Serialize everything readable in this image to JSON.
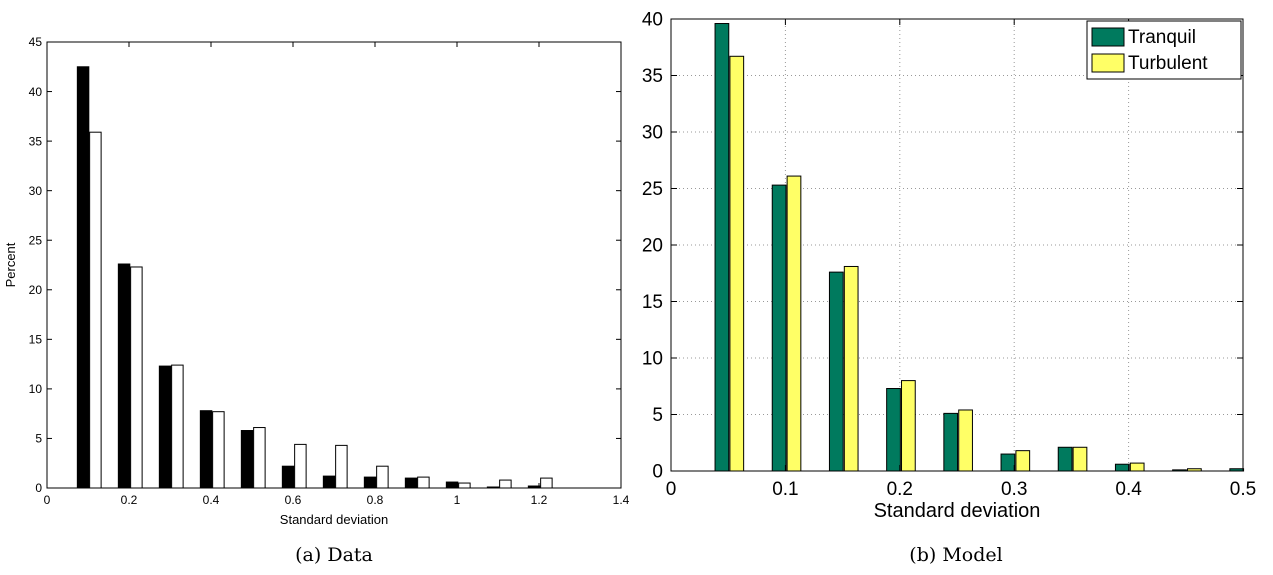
{
  "captions": {
    "a": "(a) Data",
    "b": "(b) Model"
  },
  "chart_data": [
    {
      "type": "bar",
      "xlabel": "Standard deviation",
      "ylabel": "Percent",
      "xlim": [
        0,
        1.4
      ],
      "ylim": [
        0,
        45
      ],
      "xticks": [
        0,
        0.2,
        0.4,
        0.6,
        0.8,
        1,
        1.2,
        1.4
      ],
      "xtick_labels": [
        "0",
        "0.2",
        "0.4",
        "0.6",
        "0.8",
        "1",
        "1.2",
        "1.4"
      ],
      "yticks": [
        0,
        5,
        10,
        15,
        20,
        25,
        30,
        35,
        40,
        45
      ],
      "grid": false,
      "legend": null,
      "categories": [
        0.1,
        0.2,
        0.3,
        0.4,
        0.5,
        0.6,
        0.7,
        0.8,
        0.9,
        1.0,
        1.1,
        1.2
      ],
      "series": [
        {
          "color": "#000000",
          "values": [
            42.5,
            22.6,
            12.3,
            7.8,
            5.8,
            2.2,
            1.2,
            1.1,
            1.0,
            0.6,
            0.1,
            0.2
          ]
        },
        {
          "color": "#ffffff",
          "values": [
            35.9,
            22.3,
            12.4,
            7.7,
            6.1,
            4.4,
            4.3,
            2.2,
            1.1,
            0.5,
            0.8,
            1.0
          ]
        }
      ]
    },
    {
      "type": "bar",
      "xlabel": "Standard deviation",
      "ylabel": "",
      "xlim": [
        0,
        0.5
      ],
      "ylim": [
        0,
        40
      ],
      "xticks": [
        0,
        0.1,
        0.2,
        0.3,
        0.4,
        0.5
      ],
      "xtick_labels": [
        "0",
        "0.1",
        "0.2",
        "0.3",
        "0.4",
        "0.5"
      ],
      "yticks": [
        0,
        5,
        10,
        15,
        20,
        25,
        30,
        35,
        40
      ],
      "grid": true,
      "legend": "top-right",
      "categories": [
        0.05,
        0.1,
        0.15,
        0.2,
        0.25,
        0.3,
        0.35,
        0.4,
        0.45,
        0.5
      ],
      "series": [
        {
          "name": "Tranquil",
          "color": "#007a5e",
          "values": [
            39.6,
            25.3,
            17.6,
            7.3,
            5.1,
            1.5,
            2.1,
            0.6,
            0.1,
            0.2
          ]
        },
        {
          "name": "Turbulent",
          "color": "#ffff66",
          "values": [
            36.7,
            26.1,
            18.1,
            8.0,
            5.4,
            1.8,
            2.1,
            0.7,
            0.2,
            0.0
          ]
        }
      ]
    }
  ]
}
